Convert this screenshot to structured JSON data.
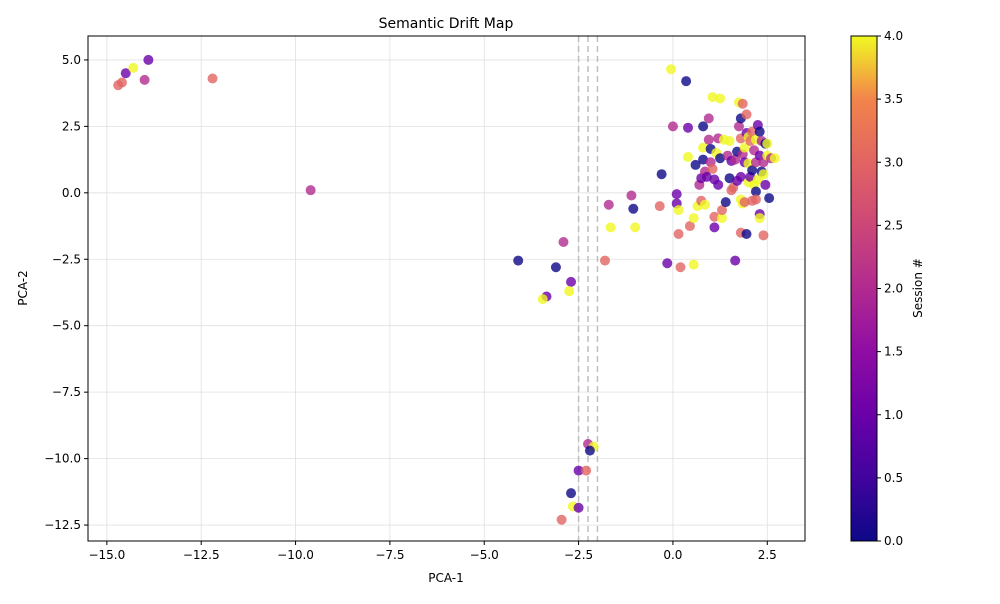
{
  "chart_data": {
    "type": "scatter",
    "title": "Semantic Drift Map",
    "xlabel": "PCA-1",
    "ylabel": "PCA-2",
    "xlim": [
      -15.5,
      3.5
    ],
    "ylim": [
      -13.1,
      5.9
    ],
    "xticks": [
      -15.0,
      -12.5,
      -10.0,
      -7.5,
      -5.0,
      -2.5,
      0.0,
      2.5
    ],
    "xtick_labels": [
      "−15.0",
      "−12.5",
      "−10.0",
      "−7.5",
      "−5.0",
      "−2.5",
      "0.0",
      "2.5"
    ],
    "yticks": [
      5.0,
      2.5,
      0.0,
      -2.5,
      -5.0,
      -7.5,
      -10.0,
      -12.5
    ],
    "ytick_labels": [
      "5.0",
      "2.5",
      "0.0",
      "−2.5",
      "−5.0",
      "−7.5",
      "−10.0",
      "−12.5"
    ],
    "grid": true,
    "colormap": "plasma",
    "colorbar": {
      "label": "Session #",
      "range": [
        0,
        4
      ],
      "ticks": [
        0.0,
        0.5,
        1.0,
        1.5,
        2.0,
        2.5,
        3.0,
        3.5,
        4.0
      ],
      "tick_labels": [
        "0.0",
        "0.5",
        "1.0",
        "1.5",
        "2.0",
        "2.5",
        "3.0",
        "3.5",
        "4.0"
      ]
    },
    "vlines": [
      -2.5,
      -2.25,
      -2.0
    ],
    "points": [
      {
        "x": -14.7,
        "y": 4.05,
        "s": 3
      },
      {
        "x": -14.6,
        "y": 4.15,
        "s": 3
      },
      {
        "x": -14.5,
        "y": 4.5,
        "s": 1
      },
      {
        "x": -14.3,
        "y": 4.7,
        "s": 4
      },
      {
        "x": -14.0,
        "y": 4.25,
        "s": 2
      },
      {
        "x": -13.9,
        "y": 5.0,
        "s": 1
      },
      {
        "x": -12.2,
        "y": 4.3,
        "s": 3
      },
      {
        "x": -9.6,
        "y": 0.1,
        "s": 2
      },
      {
        "x": -4.1,
        "y": -2.55,
        "s": 0
      },
      {
        "x": -3.1,
        "y": -2.8,
        "s": 0
      },
      {
        "x": -2.9,
        "y": -1.85,
        "s": 2
      },
      {
        "x": -2.7,
        "y": -3.35,
        "s": 1
      },
      {
        "x": -3.35,
        "y": -3.9,
        "s": 1
      },
      {
        "x": -3.45,
        "y": -4.0,
        "s": 4
      },
      {
        "x": -2.75,
        "y": -3.7,
        "s": 4
      },
      {
        "x": -1.8,
        "y": -2.55,
        "s": 3
      },
      {
        "x": -1.7,
        "y": -0.45,
        "s": 2
      },
      {
        "x": -1.65,
        "y": -1.3,
        "s": 4
      },
      {
        "x": -1.1,
        "y": -0.1,
        "s": 2
      },
      {
        "x": -1.05,
        "y": -0.6,
        "s": 0
      },
      {
        "x": -1.0,
        "y": -1.3,
        "s": 4
      },
      {
        "x": -0.35,
        "y": -0.5,
        "s": 3
      },
      {
        "x": -0.3,
        "y": 0.7,
        "s": 0
      },
      {
        "x": -0.15,
        "y": -2.65,
        "s": 1
      },
      {
        "x": -0.05,
        "y": 4.65,
        "s": 4
      },
      {
        "x": 0.0,
        "y": 2.5,
        "s": 2
      },
      {
        "x": 0.1,
        "y": -0.05,
        "s": 1
      },
      {
        "x": 0.1,
        "y": -0.4,
        "s": 1
      },
      {
        "x": 0.15,
        "y": -0.65,
        "s": 4
      },
      {
        "x": 0.15,
        "y": -1.55,
        "s": 3
      },
      {
        "x": 0.2,
        "y": -2.8,
        "s": 3
      },
      {
        "x": 0.35,
        "y": 4.2,
        "s": 0
      },
      {
        "x": 0.4,
        "y": 2.45,
        "s": 1
      },
      {
        "x": 0.4,
        "y": 1.35,
        "s": 4
      },
      {
        "x": 0.45,
        "y": -1.25,
        "s": 3
      },
      {
        "x": 0.55,
        "y": -0.95,
        "s": 4
      },
      {
        "x": 0.55,
        "y": -2.7,
        "s": 4
      },
      {
        "x": 0.6,
        "y": 1.05,
        "s": 0
      },
      {
        "x": 0.65,
        "y": -0.5,
        "s": 4
      },
      {
        "x": 0.7,
        "y": 0.3,
        "s": 2
      },
      {
        "x": 0.75,
        "y": -0.3,
        "s": 3
      },
      {
        "x": 0.75,
        "y": 0.55,
        "s": 1
      },
      {
        "x": 0.8,
        "y": 2.5,
        "s": 0
      },
      {
        "x": 0.8,
        "y": 1.7,
        "s": 4
      },
      {
        "x": 0.8,
        "y": 1.25,
        "s": 0
      },
      {
        "x": 0.85,
        "y": 0.8,
        "s": 2
      },
      {
        "x": 0.85,
        "y": -0.45,
        "s": 4
      },
      {
        "x": 0.9,
        "y": 0.6,
        "s": 1
      },
      {
        "x": 0.95,
        "y": 2.0,
        "s": 2
      },
      {
        "x": 0.95,
        "y": 2.8,
        "s": 2
      },
      {
        "x": 1.0,
        "y": 1.65,
        "s": 0
      },
      {
        "x": 1.0,
        "y": 1.15,
        "s": 2
      },
      {
        "x": 1.05,
        "y": 0.9,
        "s": 3
      },
      {
        "x": 1.05,
        "y": 3.6,
        "s": 4
      },
      {
        "x": 1.1,
        "y": 0.5,
        "s": 1
      },
      {
        "x": 1.1,
        "y": -0.9,
        "s": 3
      },
      {
        "x": 1.1,
        "y": -1.3,
        "s": 1
      },
      {
        "x": 1.15,
        "y": 1.5,
        "s": 4
      },
      {
        "x": 1.2,
        "y": 2.05,
        "s": 2
      },
      {
        "x": 1.2,
        "y": 0.3,
        "s": 1
      },
      {
        "x": 1.25,
        "y": 1.3,
        "s": 0
      },
      {
        "x": 1.25,
        "y": 3.55,
        "s": 4
      },
      {
        "x": 1.3,
        "y": -0.95,
        "s": 4
      },
      {
        "x": 1.3,
        "y": -0.65,
        "s": 3
      },
      {
        "x": 1.35,
        "y": 2.0,
        "s": 4
      },
      {
        "x": 1.4,
        "y": -0.35,
        "s": 0
      },
      {
        "x": 1.45,
        "y": 1.4,
        "s": 2
      },
      {
        "x": 1.5,
        "y": 0.55,
        "s": 0
      },
      {
        "x": 1.5,
        "y": 1.95,
        "s": 4
      },
      {
        "x": 1.55,
        "y": 1.2,
        "s": 1
      },
      {
        "x": 1.55,
        "y": 0.1,
        "s": 3
      },
      {
        "x": 1.6,
        "y": 0.2,
        "s": 3
      },
      {
        "x": 1.65,
        "y": 1.25,
        "s": 2
      },
      {
        "x": 1.65,
        "y": -2.55,
        "s": 1
      },
      {
        "x": 1.7,
        "y": 0.45,
        "s": 1
      },
      {
        "x": 1.7,
        "y": 1.55,
        "s": 0
      },
      {
        "x": 1.75,
        "y": 3.4,
        "s": 4
      },
      {
        "x": 1.75,
        "y": 2.5,
        "s": 2
      },
      {
        "x": 1.8,
        "y": 2.8,
        "s": 0
      },
      {
        "x": 1.8,
        "y": 2.05,
        "s": 3
      },
      {
        "x": 1.8,
        "y": 0.6,
        "s": 1
      },
      {
        "x": 1.8,
        "y": -0.25,
        "s": 4
      },
      {
        "x": 1.8,
        "y": -1.5,
        "s": 3
      },
      {
        "x": 1.85,
        "y": 3.35,
        "s": 3
      },
      {
        "x": 1.85,
        "y": 1.45,
        "s": 2
      },
      {
        "x": 1.85,
        "y": -0.4,
        "s": 4
      },
      {
        "x": 1.9,
        "y": 1.7,
        "s": 4
      },
      {
        "x": 1.9,
        "y": 1.15,
        "s": 1
      },
      {
        "x": 1.9,
        "y": -0.35,
        "s": 3
      },
      {
        "x": 1.95,
        "y": 2.95,
        "s": 3
      },
      {
        "x": 1.95,
        "y": 2.25,
        "s": 1
      },
      {
        "x": 1.95,
        "y": -1.55,
        "s": 0
      },
      {
        "x": 2.0,
        "y": 1.1,
        "s": 4
      },
      {
        "x": 2.0,
        "y": 0.4,
        "s": 4
      },
      {
        "x": 2.0,
        "y": 2.1,
        "s": 4
      },
      {
        "x": 2.05,
        "y": 0.6,
        "s": 1
      },
      {
        "x": 2.05,
        "y": 1.95,
        "s": 3
      },
      {
        "x": 2.1,
        "y": 2.3,
        "s": 3
      },
      {
        "x": 2.1,
        "y": 0.85,
        "s": 0
      },
      {
        "x": 2.1,
        "y": -0.3,
        "s": 3
      },
      {
        "x": 2.15,
        "y": 1.6,
        "s": 2
      },
      {
        "x": 2.15,
        "y": 0.3,
        "s": 4
      },
      {
        "x": 2.2,
        "y": 2.0,
        "s": 4
      },
      {
        "x": 2.2,
        "y": 1.15,
        "s": 2
      },
      {
        "x": 2.2,
        "y": 0.05,
        "s": 0
      },
      {
        "x": 2.2,
        "y": -0.25,
        "s": 3
      },
      {
        "x": 2.25,
        "y": 2.55,
        "s": 1
      },
      {
        "x": 2.25,
        "y": 0.5,
        "s": 4
      },
      {
        "x": 2.3,
        "y": 2.3,
        "s": 0
      },
      {
        "x": 2.3,
        "y": 1.4,
        "s": 1
      },
      {
        "x": 2.3,
        "y": -0.8,
        "s": 1
      },
      {
        "x": 2.3,
        "y": -0.95,
        "s": 4
      },
      {
        "x": 2.35,
        "y": 1.95,
        "s": 2
      },
      {
        "x": 2.35,
        "y": 0.8,
        "s": 0
      },
      {
        "x": 2.4,
        "y": 1.15,
        "s": 2
      },
      {
        "x": 2.4,
        "y": 0.7,
        "s": 4
      },
      {
        "x": 2.4,
        "y": -1.6,
        "s": 3
      },
      {
        "x": 2.45,
        "y": 1.85,
        "s": 0
      },
      {
        "x": 2.45,
        "y": 0.3,
        "s": 1
      },
      {
        "x": 2.5,
        "y": 1.4,
        "s": 4
      },
      {
        "x": 2.5,
        "y": 1.85,
        "s": 4
      },
      {
        "x": 2.55,
        "y": -0.2,
        "s": 0
      },
      {
        "x": 2.6,
        "y": 1.3,
        "s": 2
      },
      {
        "x": 2.7,
        "y": 1.3,
        "s": 4
      },
      {
        "x": -2.25,
        "y": -9.45,
        "s": 2
      },
      {
        "x": -2.1,
        "y": -9.55,
        "s": 4
      },
      {
        "x": -2.2,
        "y": -9.7,
        "s": 0
      },
      {
        "x": -2.5,
        "y": -10.45,
        "s": 1
      },
      {
        "x": -2.3,
        "y": -10.45,
        "s": 3
      },
      {
        "x": -2.7,
        "y": -11.3,
        "s": 0
      },
      {
        "x": -2.65,
        "y": -11.8,
        "s": 4
      },
      {
        "x": -2.5,
        "y": -11.85,
        "s": 1
      },
      {
        "x": -2.95,
        "y": -12.3,
        "s": 3
      }
    ]
  }
}
